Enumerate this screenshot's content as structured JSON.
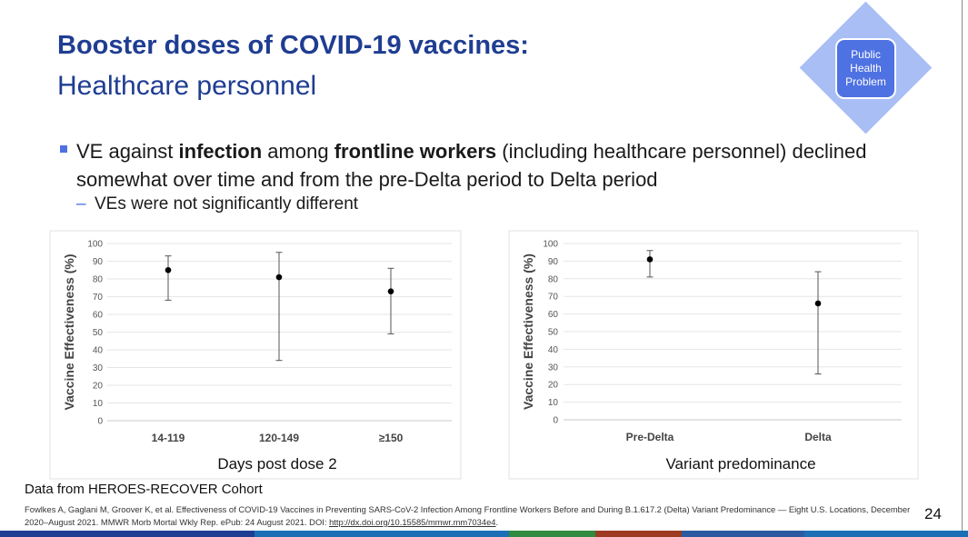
{
  "title": {
    "main": "Booster doses of COVID-19 vaccines:",
    "sub": "Healthcare personnel"
  },
  "badge": {
    "label": "Public\nHealth\nProblem"
  },
  "bullet": {
    "parts": [
      {
        "text": "VE against ",
        "bold": false
      },
      {
        "text": "infection",
        "bold": true
      },
      {
        "text": " among ",
        "bold": false
      },
      {
        "text": "frontline workers",
        "bold": true
      },
      {
        "text": " (including healthcare personnel) declined somewhat over time and from the pre-Delta period to Delta period",
        "bold": false
      }
    ],
    "sub": "VEs were not significantly different",
    "sub_dash": "–"
  },
  "chart_data": [
    {
      "type": "scatter",
      "error_bars": true,
      "ylabel": "Vaccine Effectiveness (%)",
      "xlabel": "Days post dose 2",
      "categories": [
        "14-119",
        "120-149",
        "≥150"
      ],
      "values": [
        85,
        81,
        73
      ],
      "lower": [
        68,
        34,
        49
      ],
      "upper": [
        93,
        95,
        86
      ],
      "ylim": [
        0,
        100
      ],
      "yticks": [
        0,
        10,
        20,
        30,
        40,
        50,
        60,
        70,
        80,
        90,
        100
      ],
      "grid": true
    },
    {
      "type": "scatter",
      "error_bars": true,
      "ylabel": "Vaccine Effectiveness (%)",
      "xlabel": "Variant predominance",
      "categories": [
        "Pre-Delta",
        "Delta"
      ],
      "values": [
        91,
        66
      ],
      "lower": [
        81,
        26
      ],
      "upper": [
        96,
        84
      ],
      "ylim": [
        0,
        100
      ],
      "yticks": [
        0,
        10,
        20,
        30,
        40,
        50,
        60,
        70,
        80,
        90,
        100
      ],
      "grid": true
    }
  ],
  "source": "Data from HEROES-RECOVER Cohort",
  "citation": {
    "text": "Fowlkes A, Gaglani M, Groover K, et al. Effectiveness of COVID-19 Vaccines in Preventing SARS-CoV-2 Infection Among Frontline Workers Before and During B.1.617.2 (Delta) Variant Predominance — Eight U.S. Locations, December 2020–August 2021. MMWR Morb Mortal Wkly Rep. ePub: 24 August 2021. DOI: ",
    "link": "http://dx.doi.org/10.15585/mmwr.mm7034e4",
    "end": "."
  },
  "page_number": "24",
  "colors": {
    "title": "#1f3d92",
    "accent": "#4f72e3",
    "diamond": "#a9bef5",
    "strip": [
      "#1f3d92",
      "#1b6fb5",
      "#2e8b3f",
      "#9c3b22",
      "#2c5aa0",
      "#1b6fb5"
    ]
  }
}
